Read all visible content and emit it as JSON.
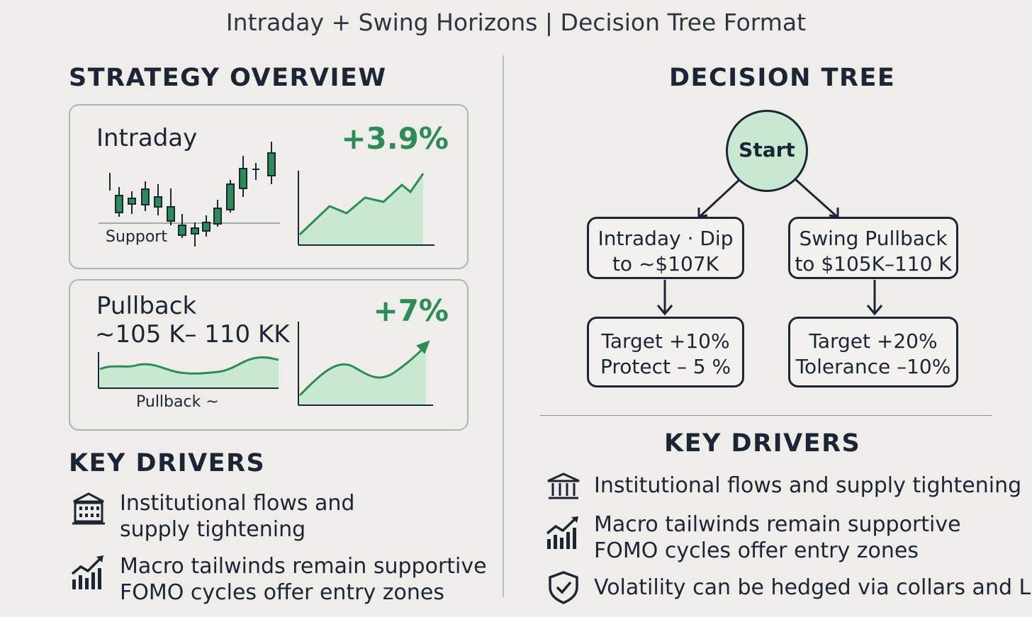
{
  "subtitle": "Intraday + Swing Horizons | Decision Tree Format",
  "left": {
    "overview_title": "STRATEGY OVERVIEW",
    "cards": [
      {
        "label": "Intraday",
        "change": "+3.9%",
        "chart_caption": "Support"
      },
      {
        "label": "Pullback",
        "range": "~105 K– 110 KK",
        "change": "+7%",
        "chart_caption": "Pullback ~"
      }
    ],
    "drivers_title": "KEY DRIVERS",
    "drivers": [
      {
        "icon": "bank-building-icon",
        "lines": [
          "Institutional flows and",
          "supply tightening"
        ]
      },
      {
        "icon": "rising-bar-chart-icon",
        "lines": [
          "Macro tailwinds remain supportive",
          "FOMO cycles offer entry zones"
        ]
      }
    ]
  },
  "right": {
    "tree_title": "DECISION TREE",
    "start_label": "Start",
    "branches": [
      {
        "setup": [
          "Intraday · Dip",
          "to ~$107K"
        ],
        "outcome": [
          "Target +10%",
          "Protect – 5 %"
        ]
      },
      {
        "setup": [
          "Swing Pullback",
          "to $105K–110 K"
        ],
        "outcome": [
          "Target +20%",
          "Tolerance –10%"
        ]
      }
    ],
    "drivers_title": "KEY DRIVERS",
    "drivers": [
      {
        "icon": "bank-building-icon",
        "lines": [
          "Institutional flows and supply tightening"
        ]
      },
      {
        "icon": "rising-bar-chart-icon",
        "lines": [
          "Macro tailwinds remain supportive",
          "FOMO cycles offer entry zones"
        ]
      },
      {
        "icon": "shield-check-icon",
        "lines": [
          "Volatility can be hedged via collars and LEAPs"
        ]
      }
    ]
  },
  "colors": {
    "background": "#efedea",
    "ink": "#1c2535",
    "accent_green": "#2e8b57",
    "fill_green": "#c9e8d2",
    "border_gray": "#aeb3bb"
  }
}
